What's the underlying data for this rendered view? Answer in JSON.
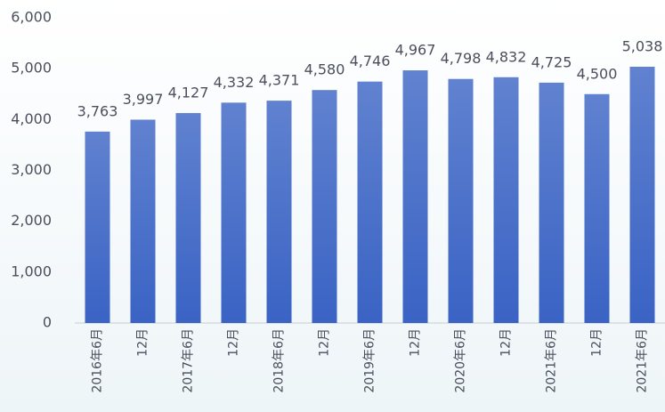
{
  "chart_data": {
    "type": "bar",
    "categories": [
      "2016年6月",
      "12月",
      "2017年6月",
      "12月",
      "2018年6月",
      "12月",
      "2019年6月",
      "12月",
      "2020年6月",
      "12月",
      "2021年6月",
      "12月",
      "2021年6月"
    ],
    "values": [
      3763,
      3997,
      4127,
      4332,
      4371,
      4580,
      4746,
      4967,
      4798,
      4832,
      4725,
      4500,
      5038
    ],
    "value_labels": [
      "3,763",
      "3,997",
      "4,127",
      "4,332",
      "4,371",
      "4,580",
      "4,746",
      "4,967",
      "4,798",
      "4,832",
      "4,725",
      "4,500",
      "5,038"
    ],
    "color": "#3a63c4",
    "ylim": [
      0,
      6000
    ],
    "yticks": [
      0,
      {
        "value": 1000,
        "label": "1,000"
      },
      {
        "value": 2000,
        "label": "2,000"
      },
      {
        "value": 3000,
        "label": "3,000"
      },
      {
        "value": 4000,
        "label": "4,000"
      },
      {
        "value": 5000,
        "label": "5,000"
      },
      {
        "value": 6000,
        "label": "6,000"
      }
    ],
    "grid": false
  }
}
